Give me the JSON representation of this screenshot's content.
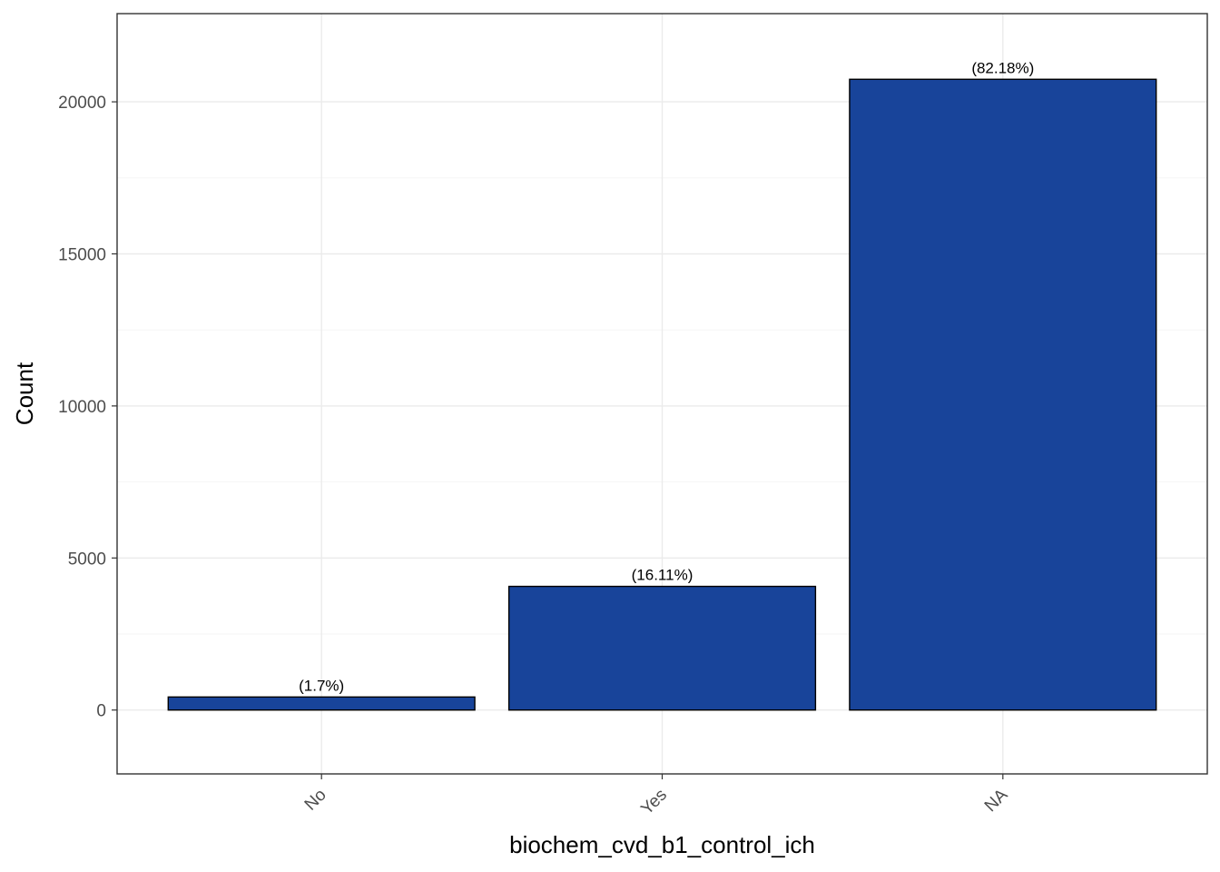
{
  "chart_data": {
    "type": "bar",
    "categories": [
      "No",
      "Yes",
      "NA"
    ],
    "values": [
      429,
      4066,
      20741
    ],
    "data_labels": [
      "(1.7%)",
      "(16.11%)",
      "(82.18%)"
    ],
    "title": "",
    "xlabel": "biochem_cvd_b1_control_ich",
    "ylabel": "Count",
    "ylim": [
      -2100,
      22900
    ],
    "yticks": [
      0,
      5000,
      10000,
      15000,
      20000
    ],
    "ytick_labels": [
      "0",
      "5000",
      "10000",
      "15000",
      "20000"
    ],
    "grid": true,
    "legend": "none",
    "bar_color": "#18449a",
    "bar_outline": "#000000",
    "theme": "bw"
  }
}
